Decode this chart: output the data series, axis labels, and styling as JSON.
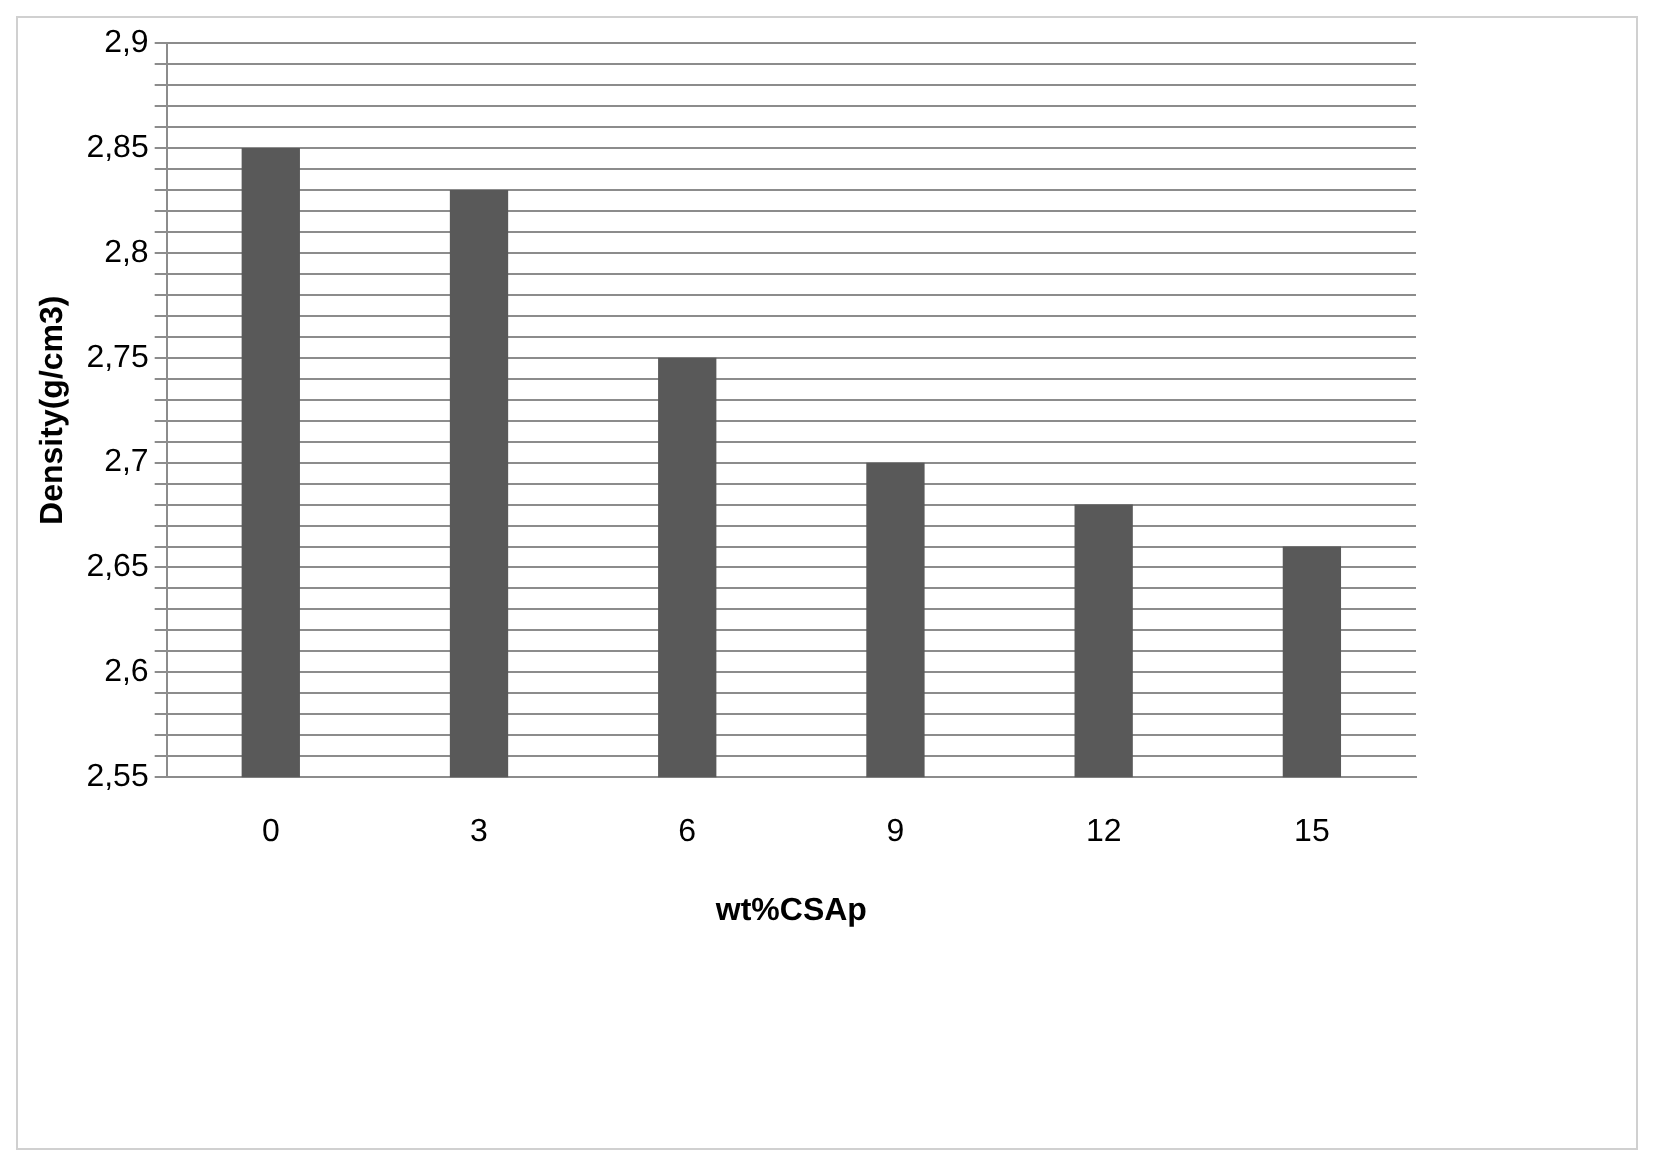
{
  "chart_data": {
    "type": "bar",
    "xlabel": "wt%CSAp",
    "ylabel": "Density(g/cm3)",
    "categories": [
      "0",
      "3",
      "6",
      "9",
      "12",
      "15"
    ],
    "values": [
      2.85,
      2.83,
      2.75,
      2.7,
      2.68,
      2.66
    ],
    "color": "#595959",
    "ylim": [
      2.55,
      2.9
    ],
    "yticks": [
      {
        "value": 2.55,
        "label": "2,55"
      },
      {
        "value": 2.56,
        "label": null
      },
      {
        "value": 2.57,
        "label": null
      },
      {
        "value": 2.58,
        "label": null
      },
      {
        "value": 2.59,
        "label": null
      },
      {
        "value": 2.6,
        "label": "2,6"
      },
      {
        "value": 2.61,
        "label": null
      },
      {
        "value": 2.62,
        "label": null
      },
      {
        "value": 2.63,
        "label": null
      },
      {
        "value": 2.64,
        "label": null
      },
      {
        "value": 2.65,
        "label": "2,65"
      },
      {
        "value": 2.66,
        "label": null
      },
      {
        "value": 2.67,
        "label": null
      },
      {
        "value": 2.68,
        "label": null
      },
      {
        "value": 2.69,
        "label": null
      },
      {
        "value": 2.7,
        "label": "2,7"
      },
      {
        "value": 2.71,
        "label": null
      },
      {
        "value": 2.72,
        "label": null
      },
      {
        "value": 2.73,
        "label": null
      },
      {
        "value": 2.74,
        "label": null
      },
      {
        "value": 2.75,
        "label": "2,75"
      },
      {
        "value": 2.76,
        "label": null
      },
      {
        "value": 2.77,
        "label": null
      },
      {
        "value": 2.78,
        "label": null
      },
      {
        "value": 2.79,
        "label": null
      },
      {
        "value": 2.8,
        "label": "2,8"
      },
      {
        "value": 2.81,
        "label": null
      },
      {
        "value": 2.82,
        "label": null
      },
      {
        "value": 2.83,
        "label": null
      },
      {
        "value": 2.84,
        "label": null
      },
      {
        "value": 2.85,
        "label": "2,85"
      },
      {
        "value": 2.86,
        "label": null
      },
      {
        "value": 2.87,
        "label": null
      },
      {
        "value": 2.88,
        "label": null
      },
      {
        "value": 2.89,
        "label": null
      },
      {
        "value": 2.9,
        "label": "2,9"
      }
    ],
    "grid": "y",
    "legend": false
  }
}
